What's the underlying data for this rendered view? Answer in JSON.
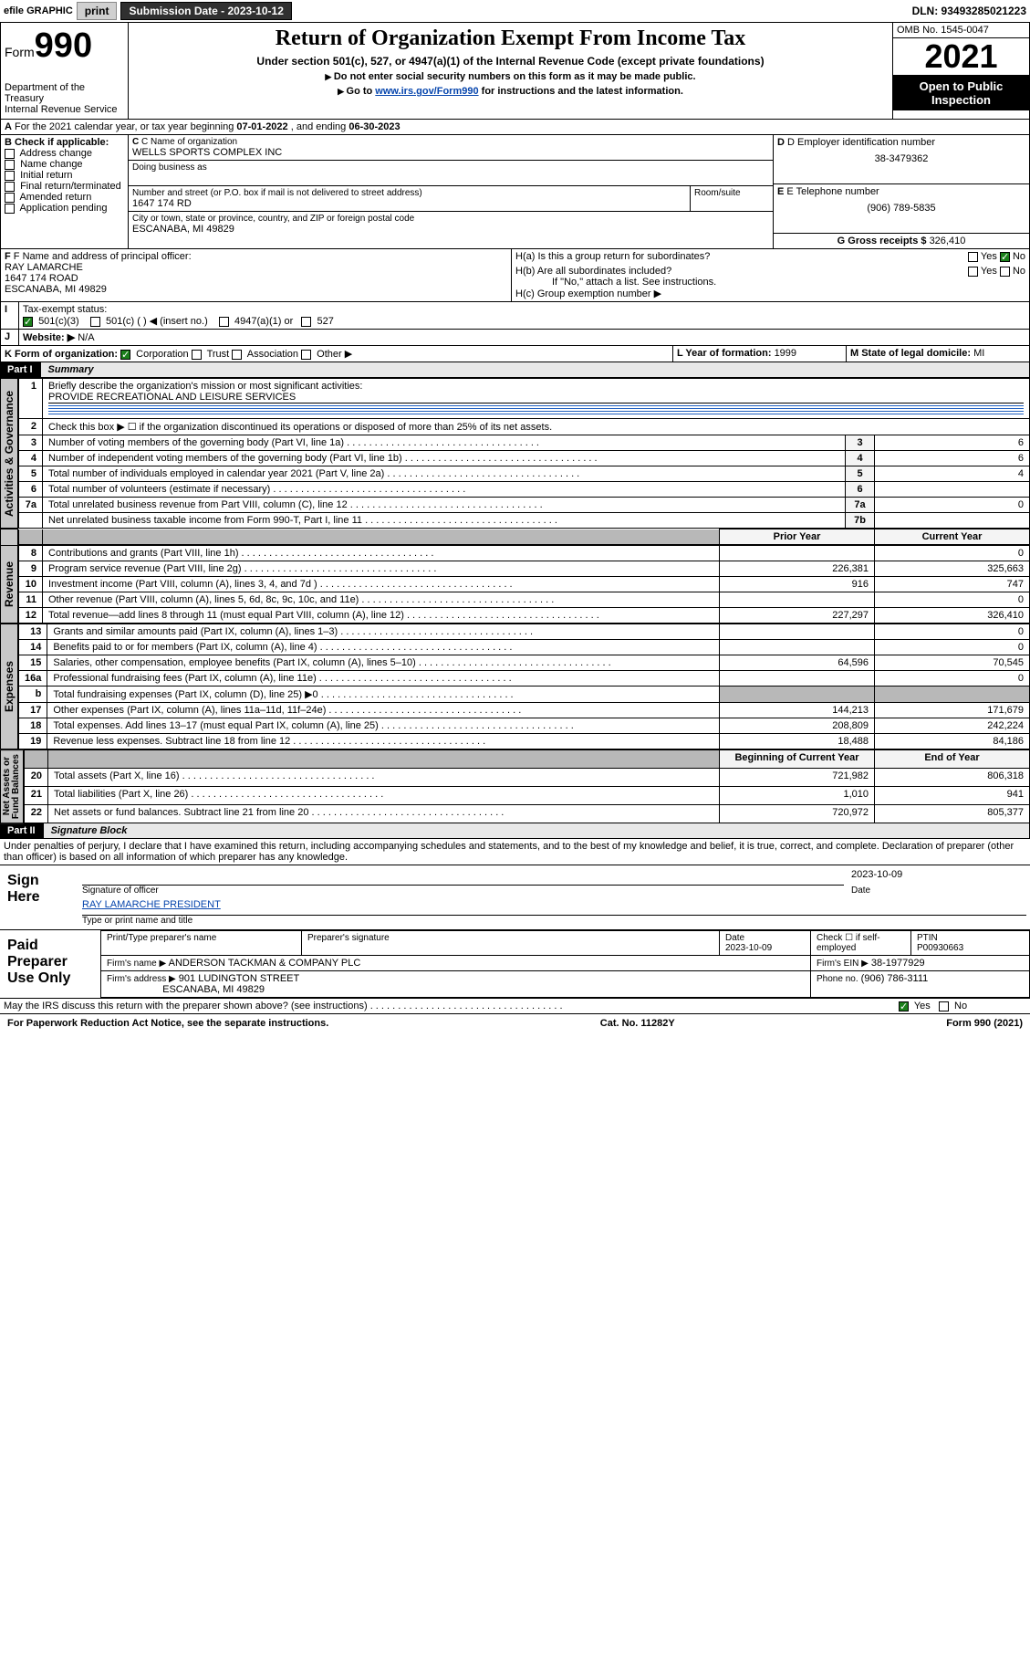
{
  "topbar": {
    "efile": "efile GRAPHIC",
    "print": "print",
    "submission_date_label": "Submission Date - 2023-10-12",
    "dln": "DLN: 93493285021223"
  },
  "header": {
    "form_word": "Form",
    "form_number": "990",
    "title": "Return of Organization Exempt From Income Tax",
    "subtitle": "Under section 501(c), 527, or 4947(a)(1) of the Internal Revenue Code (except private foundations)",
    "instr1": "Do not enter social security numbers on this form as it may be made public.",
    "instr2_pre": "Go to ",
    "instr2_link": "www.irs.gov/Form990",
    "instr2_post": " for instructions and the latest information.",
    "dept": "Department of the Treasury\nInternal Revenue Service",
    "omb": "OMB No. 1545-0047",
    "year": "2021",
    "open_public": "Open to Public Inspection"
  },
  "line_a": {
    "text_pre": "For the 2021 calendar year, or tax year beginning ",
    "begin": "07-01-2022",
    "text_mid": " , and ending ",
    "end": "06-30-2023"
  },
  "box_b": {
    "label": "B Check if applicable:",
    "options": [
      "Address change",
      "Name change",
      "Initial return",
      "Final return/terminated",
      "Amended return",
      "Application pending"
    ]
  },
  "box_c": {
    "label": "C Name of organization",
    "name": "WELLS SPORTS COMPLEX INC",
    "dba_label": "Doing business as",
    "addr_label": "Number and street (or P.O. box if mail is not delivered to street address)",
    "room_label": "Room/suite",
    "street": "1647 174 RD",
    "city_label": "City or town, state or province, country, and ZIP or foreign postal code",
    "city": "ESCANABA, MI  49829"
  },
  "box_d": {
    "label": "D Employer identification number",
    "value": "38-3479362"
  },
  "box_e": {
    "label": "E Telephone number",
    "value": "(906) 789-5835"
  },
  "box_g": {
    "label": "G Gross receipts $",
    "value": "326,410"
  },
  "box_f": {
    "label": "F Name and address of principal officer:",
    "name": "RAY LAMARCHE",
    "street": "1647 174 ROAD",
    "city": "ESCANABA, MI  49829"
  },
  "box_h": {
    "ha": "H(a)  Is this a group return for subordinates?",
    "hb": "H(b)  Are all subordinates included?",
    "hb_note": "If \"No,\" attach a list. See instructions.",
    "hc": "H(c)  Group exemption number ▶",
    "yes": "Yes",
    "no": "No"
  },
  "box_i": {
    "label": "Tax-exempt status:",
    "o1": "501(c)(3)",
    "o2": "501(c) (  ) ◀ (insert no.)",
    "o3": "4947(a)(1) or",
    "o4": "527"
  },
  "box_j": {
    "label": "Website: ▶",
    "value": "N/A"
  },
  "box_k": {
    "label": "K Form of organization:",
    "o1": "Corporation",
    "o2": "Trust",
    "o3": "Association",
    "o4": "Other ▶"
  },
  "box_l": {
    "label": "L Year of formation: ",
    "value": "1999"
  },
  "box_m": {
    "label": "M State of legal domicile: ",
    "value": "MI"
  },
  "part1": {
    "label": "Part I",
    "title": "Summary"
  },
  "summary": {
    "l1_label": "Briefly describe the organization's mission or most significant activities:",
    "l1_value": "PROVIDE RECREATIONAL AND LEISURE SERVICES",
    "l2": "Check this box ▶ ☐  if the organization discontinued its operations or disposed of more than 25% of its net assets.",
    "rows_top": [
      {
        "n": "3",
        "t": "Number of voting members of the governing body (Part VI, line 1a)",
        "box": "3",
        "v": "6"
      },
      {
        "n": "4",
        "t": "Number of independent voting members of the governing body (Part VI, line 1b)",
        "box": "4",
        "v": "6"
      },
      {
        "n": "5",
        "t": "Total number of individuals employed in calendar year 2021 (Part V, line 2a)",
        "box": "5",
        "v": "4"
      },
      {
        "n": "6",
        "t": "Total number of volunteers (estimate if necessary)",
        "box": "6",
        "v": ""
      },
      {
        "n": "7a",
        "t": "Total unrelated business revenue from Part VIII, column (C), line 12",
        "box": "7a",
        "v": "0"
      },
      {
        "n": "",
        "t": "Net unrelated business taxable income from Form 990-T, Part I, line 11",
        "box": "7b",
        "v": ""
      }
    ],
    "col_prior": "Prior Year",
    "col_current": "Current Year",
    "col_beg": "Beginning of Current Year",
    "col_end": "End of Year",
    "rev": [
      {
        "n": "8",
        "t": "Contributions and grants (Part VIII, line 1h)",
        "p": "",
        "c": "0"
      },
      {
        "n": "9",
        "t": "Program service revenue (Part VIII, line 2g)",
        "p": "226,381",
        "c": "325,663"
      },
      {
        "n": "10",
        "t": "Investment income (Part VIII, column (A), lines 3, 4, and 7d )",
        "p": "916",
        "c": "747"
      },
      {
        "n": "11",
        "t": "Other revenue (Part VIII, column (A), lines 5, 6d, 8c, 9c, 10c, and 11e)",
        "p": "",
        "c": "0"
      },
      {
        "n": "12",
        "t": "Total revenue—add lines 8 through 11 (must equal Part VIII, column (A), line 12)",
        "p": "227,297",
        "c": "326,410"
      }
    ],
    "exp": [
      {
        "n": "13",
        "t": "Grants and similar amounts paid (Part IX, column (A), lines 1–3)",
        "p": "",
        "c": "0"
      },
      {
        "n": "14",
        "t": "Benefits paid to or for members (Part IX, column (A), line 4)",
        "p": "",
        "c": "0"
      },
      {
        "n": "15",
        "t": "Salaries, other compensation, employee benefits (Part IX, column (A), lines 5–10)",
        "p": "64,596",
        "c": "70,545"
      },
      {
        "n": "16a",
        "t": "Professional fundraising fees (Part IX, column (A), line 11e)",
        "p": "",
        "c": "0"
      },
      {
        "n": "b",
        "t": "Total fundraising expenses (Part IX, column (D), line 25) ▶0",
        "p": "SHADE",
        "c": "SHADE"
      },
      {
        "n": "17",
        "t": "Other expenses (Part IX, column (A), lines 11a–11d, 11f–24e)",
        "p": "144,213",
        "c": "171,679"
      },
      {
        "n": "18",
        "t": "Total expenses. Add lines 13–17 (must equal Part IX, column (A), line 25)",
        "p": "208,809",
        "c": "242,224"
      },
      {
        "n": "19",
        "t": "Revenue less expenses. Subtract line 18 from line 12",
        "p": "18,488",
        "c": "84,186"
      }
    ],
    "net": [
      {
        "n": "20",
        "t": "Total assets (Part X, line 16)",
        "p": "721,982",
        "c": "806,318"
      },
      {
        "n": "21",
        "t": "Total liabilities (Part X, line 26)",
        "p": "1,010",
        "c": "941"
      },
      {
        "n": "22",
        "t": "Net assets or fund balances. Subtract line 21 from line 20",
        "p": "720,972",
        "c": "805,377"
      }
    ]
  },
  "vtabs": {
    "gov": "Activities & Governance",
    "rev": "Revenue",
    "exp": "Expenses",
    "net": "Net Assets or\nFund Balances"
  },
  "part2": {
    "label": "Part II",
    "title": "Signature Block"
  },
  "sig": {
    "decl": "Under penalties of perjury, I declare that I have examined this return, including accompanying schedules and statements, and to the best of my knowledge and belief, it is true, correct, and complete. Declaration of preparer (other than officer) is based on all information of which preparer has any knowledge.",
    "sign_here": "Sign Here",
    "sig_officer": "Signature of officer",
    "date_label": "Date",
    "officer_date": "2023-10-09",
    "officer_name": "RAY LAMARCHE PRESIDENT",
    "officer_type": "Type or print name and title",
    "paid": "Paid Preparer Use Only",
    "prep_name_label": "Print/Type preparer's name",
    "prep_sig_label": "Preparer's signature",
    "prep_date": "2023-10-09",
    "check_label": "Check ☐ if self-employed",
    "ptin_label": "PTIN",
    "ptin": "P00930663",
    "firm_name_label": "Firm's name    ▶",
    "firm_name": "ANDERSON TACKMAN & COMPANY PLC",
    "firm_ein_label": "Firm's EIN ▶",
    "firm_ein": "38-1977929",
    "firm_addr_label": "Firm's address ▶",
    "firm_addr1": "901 LUDINGTON STREET",
    "firm_addr2": "ESCANABA, MI  49829",
    "phone_label": "Phone no.",
    "phone": "(906) 786-3111",
    "discuss": "May the IRS discuss this return with the preparer shown above? (see instructions)",
    "yes": "Yes",
    "no": "No"
  },
  "footer": {
    "left": "For Paperwork Reduction Act Notice, see the separate instructions.",
    "mid": "Cat. No. 11282Y",
    "right": "Form 990 (2021)"
  }
}
